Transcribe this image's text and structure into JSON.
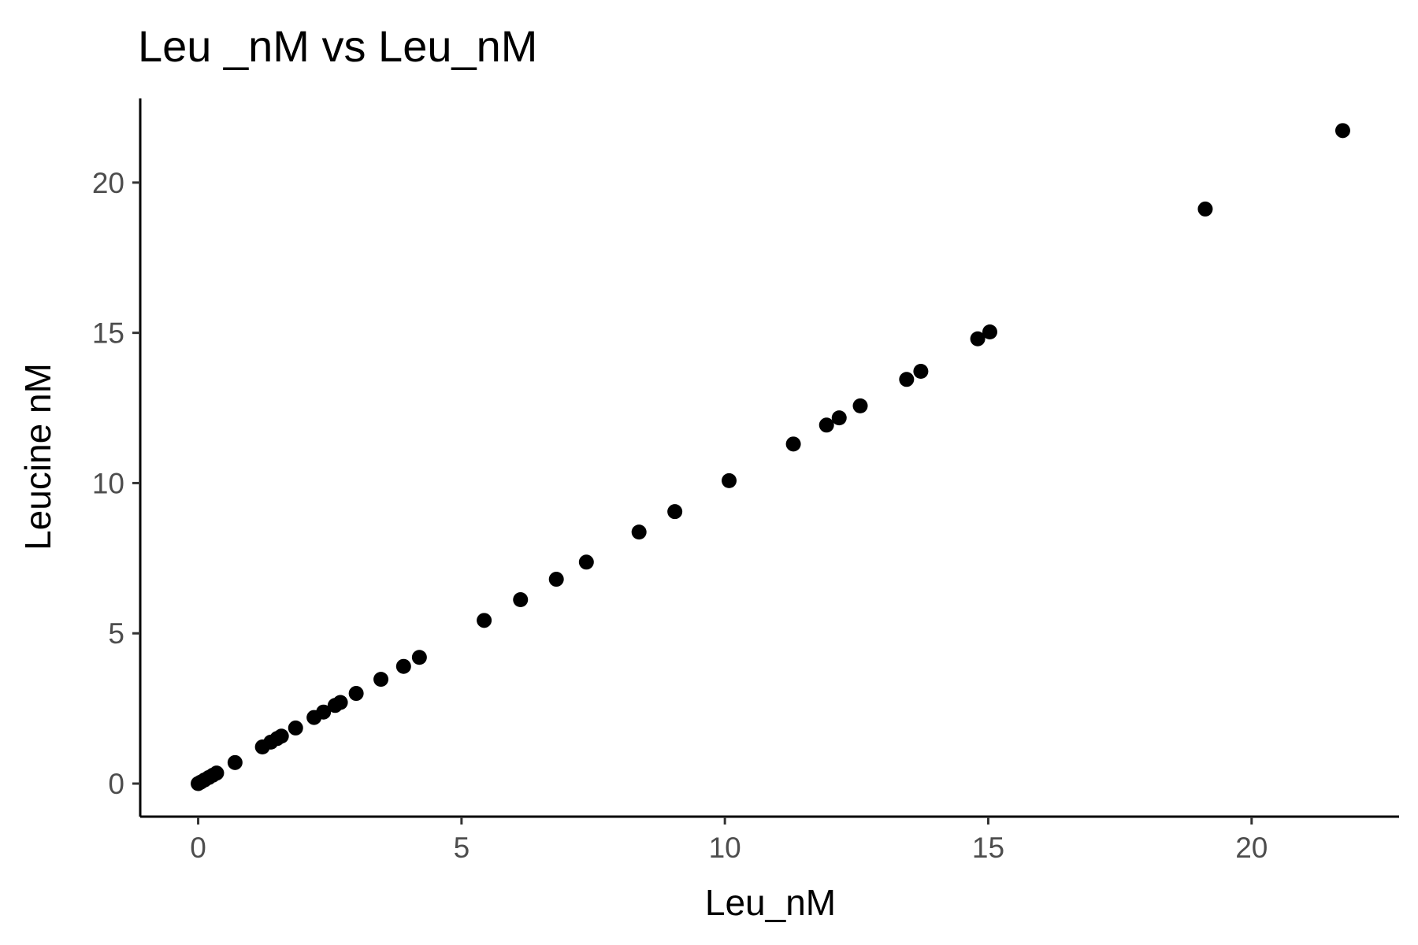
{
  "chart_data": {
    "type": "scatter",
    "title": "Leu _nM vs Leu_nM",
    "xlabel": "Leu_nM",
    "ylabel": "Leucine nM",
    "xlim": [
      -1.1,
      22.8
    ],
    "ylim": [
      -1.1,
      22.8
    ],
    "xticks": [
      0,
      5,
      10,
      15,
      20
    ],
    "yticks": [
      0,
      5,
      10,
      15,
      20
    ],
    "xtick_labels": [
      "0",
      "5",
      "10",
      "15",
      "20"
    ],
    "ytick_labels": [
      "0",
      "5",
      "10",
      "15",
      "20"
    ],
    "grid": false,
    "legend": "none",
    "point_color": "#000000",
    "points": [
      {
        "x": 0.0,
        "y": 0.0
      },
      {
        "x": 0.05,
        "y": 0.05
      },
      {
        "x": 0.12,
        "y": 0.12
      },
      {
        "x": 0.2,
        "y": 0.2
      },
      {
        "x": 0.28,
        "y": 0.28
      },
      {
        "x": 0.35,
        "y": 0.35
      },
      {
        "x": 0.7,
        "y": 0.7
      },
      {
        "x": 1.22,
        "y": 1.22
      },
      {
        "x": 1.38,
        "y": 1.38
      },
      {
        "x": 1.5,
        "y": 1.5
      },
      {
        "x": 1.58,
        "y": 1.58
      },
      {
        "x": 1.85,
        "y": 1.85
      },
      {
        "x": 2.2,
        "y": 2.2
      },
      {
        "x": 2.38,
        "y": 2.38
      },
      {
        "x": 2.6,
        "y": 2.6
      },
      {
        "x": 2.7,
        "y": 2.7
      },
      {
        "x": 3.0,
        "y": 3.0
      },
      {
        "x": 3.47,
        "y": 3.47
      },
      {
        "x": 3.9,
        "y": 3.9
      },
      {
        "x": 4.2,
        "y": 4.2
      },
      {
        "x": 5.43,
        "y": 5.43
      },
      {
        "x": 6.12,
        "y": 6.12
      },
      {
        "x": 6.8,
        "y": 6.8
      },
      {
        "x": 7.37,
        "y": 7.37
      },
      {
        "x": 8.37,
        "y": 8.37
      },
      {
        "x": 9.05,
        "y": 9.05
      },
      {
        "x": 10.08,
        "y": 10.08
      },
      {
        "x": 11.3,
        "y": 11.3
      },
      {
        "x": 11.93,
        "y": 11.93
      },
      {
        "x": 12.17,
        "y": 12.17
      },
      {
        "x": 12.57,
        "y": 12.57
      },
      {
        "x": 13.45,
        "y": 13.45
      },
      {
        "x": 13.72,
        "y": 13.72
      },
      {
        "x": 14.8,
        "y": 14.8
      },
      {
        "x": 15.03,
        "y": 15.03
      },
      {
        "x": 19.12,
        "y": 19.12
      },
      {
        "x": 21.73,
        "y": 21.73
      }
    ]
  }
}
